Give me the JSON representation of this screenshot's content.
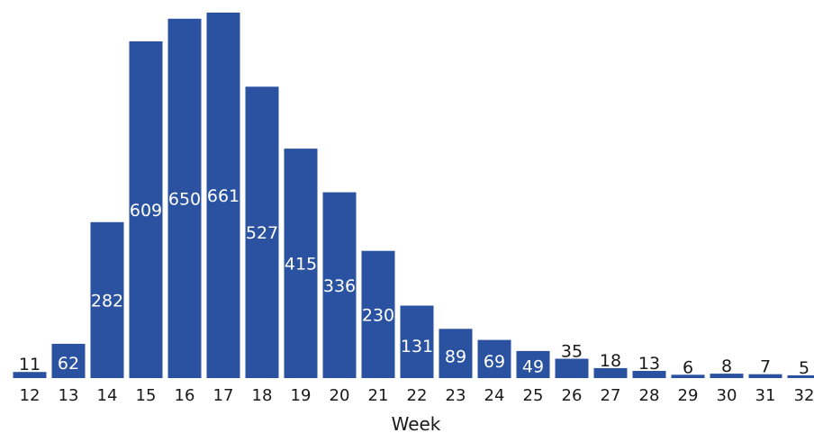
{
  "chart_data": {
    "type": "bar",
    "title": "",
    "xlabel": "Week",
    "ylabel": "",
    "categories": [
      "12",
      "13",
      "14",
      "15",
      "16",
      "17",
      "18",
      "19",
      "20",
      "21",
      "22",
      "23",
      "24",
      "25",
      "26",
      "27",
      "28",
      "29",
      "30",
      "31",
      "32"
    ],
    "values": [
      11,
      62,
      282,
      609,
      650,
      661,
      527,
      415,
      336,
      230,
      131,
      89,
      69,
      49,
      35,
      18,
      13,
      6,
      8,
      7,
      5
    ],
    "ylim": [
      0,
      661
    ],
    "grid": false,
    "legend": "none",
    "bar_color": "#2a52a0",
    "inside_label_color": "#ffffff",
    "outside_label_color": "#1a1a1a"
  }
}
